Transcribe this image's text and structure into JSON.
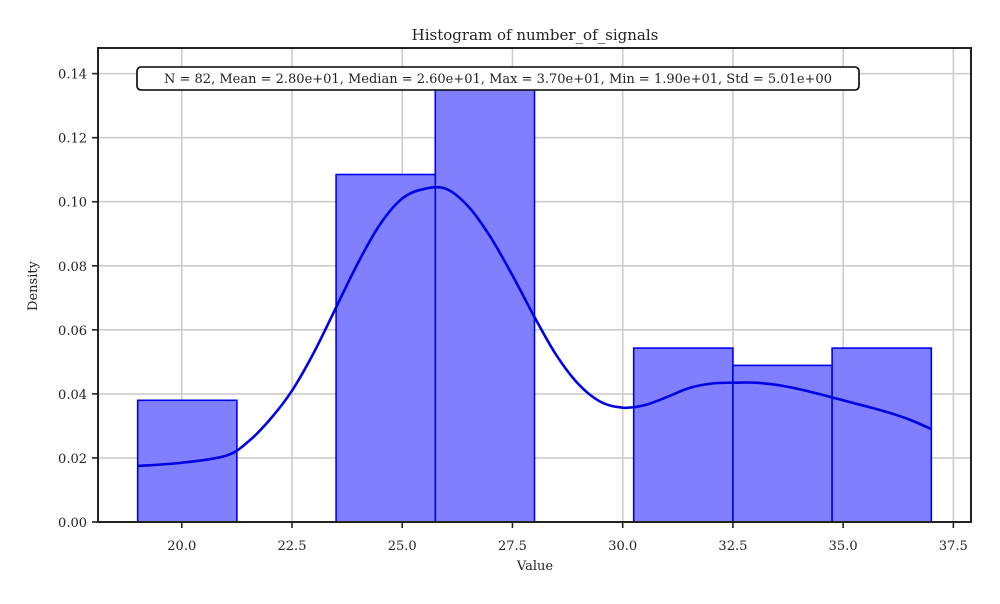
{
  "chart_data": {
    "type": "bar",
    "title": "Histogram of number_of_signals",
    "xlabel": "Value",
    "ylabel": "Density",
    "xlim": [
      18.1,
      37.9
    ],
    "ylim": [
      0,
      0.148
    ],
    "x_ticks": [
      20.0,
      22.5,
      25.0,
      27.5,
      30.0,
      32.5,
      35.0,
      37.5
    ],
    "x_tick_labels": [
      "20.0",
      "22.5",
      "25.0",
      "27.5",
      "30.0",
      "32.5",
      "35.0",
      "37.5"
    ],
    "y_ticks": [
      0.0,
      0.02,
      0.04,
      0.06,
      0.08,
      0.1,
      0.12,
      0.14
    ],
    "y_tick_labels": [
      "0.00",
      "0.02",
      "0.04",
      "0.06",
      "0.08",
      "0.10",
      "0.12",
      "0.14"
    ],
    "grid": true,
    "bins": [
      {
        "x0": 19.0,
        "x1": 21.25,
        "density": 0.038
      },
      {
        "x0": 21.25,
        "x1": 23.5,
        "density": 0.0
      },
      {
        "x0": 23.5,
        "x1": 25.75,
        "density": 0.1085
      },
      {
        "x0": 25.75,
        "x1": 28.0,
        "density": 0.136
      },
      {
        "x0": 28.0,
        "x1": 30.25,
        "density": 0.0
      },
      {
        "x0": 30.25,
        "x1": 32.5,
        "density": 0.0543
      },
      {
        "x0": 32.5,
        "x1": 34.75,
        "density": 0.0489
      },
      {
        "x0": 34.75,
        "x1": 37.0,
        "density": 0.0543
      }
    ],
    "kde": {
      "x": [
        19.0,
        20.0,
        21.0,
        21.5,
        22.0,
        22.5,
        23.0,
        23.5,
        24.0,
        24.5,
        25.0,
        25.5,
        26.0,
        26.5,
        27.0,
        27.5,
        28.0,
        28.5,
        29.0,
        29.5,
        30.0,
        30.5,
        31.0,
        31.5,
        32.0,
        32.5,
        33.0,
        33.5,
        34.0,
        34.5,
        35.0,
        35.5,
        36.0,
        36.5,
        37.0
      ],
      "y": [
        0.0175,
        0.0185,
        0.0207,
        0.025,
        0.032,
        0.041,
        0.053,
        0.067,
        0.081,
        0.093,
        0.101,
        0.104,
        0.104,
        0.0985,
        0.089,
        0.077,
        0.064,
        0.052,
        0.043,
        0.0375,
        0.0357,
        0.0365,
        0.039,
        0.0418,
        0.0432,
        0.0435,
        0.0435,
        0.0428,
        0.0415,
        0.0398,
        0.038,
        0.0362,
        0.0343,
        0.032,
        0.029
      ]
    },
    "colors": {
      "bar_fill": "#8080ff",
      "bar_edge": "#0000ee",
      "kde_line": "#0000e6",
      "grid": "#cccccc",
      "axes": "#222222"
    },
    "annotation": "N = 82, Mean = 2.80e+01, Median = 2.60e+01, Max = 3.70e+01, Min = 1.90e+01, Std = 5.01e+00"
  }
}
